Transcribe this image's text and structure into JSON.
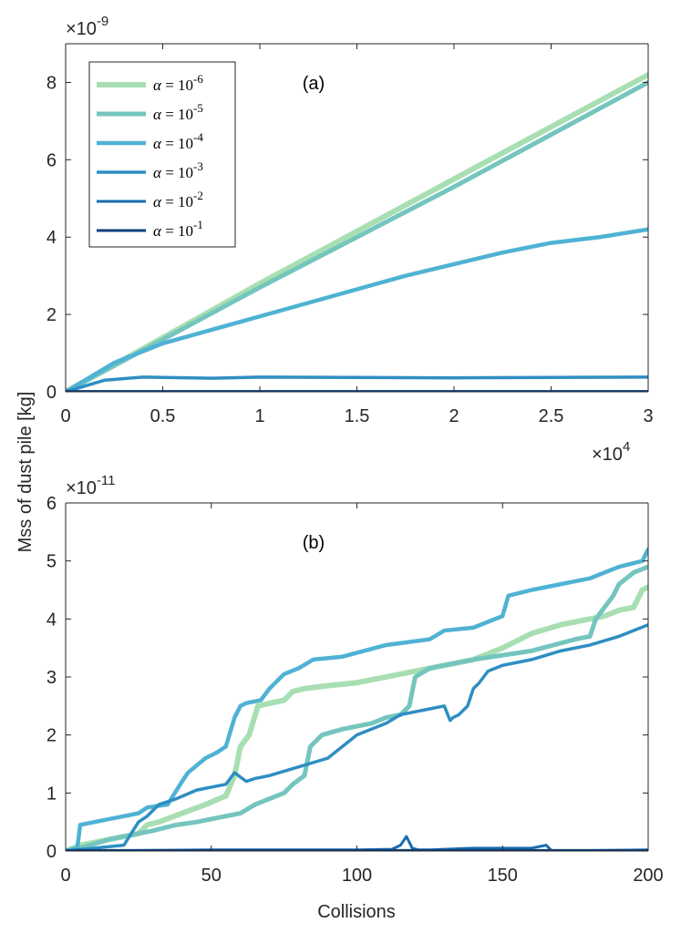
{
  "ylabel": "Mss of dust pile [kg]",
  "xlabel": "Collisions",
  "colors": [
    "#a8dfb2",
    "#74c5bd",
    "#4fb2d4",
    "#2e8ec2",
    "#1a6cb0",
    "#0d3f7e"
  ],
  "legend": {
    "placement": "top-left",
    "entries": [
      {
        "symbol": "α",
        "text": " = 10",
        "exp": "-6"
      },
      {
        "symbol": "α",
        "text": " = 10",
        "exp": "-5"
      },
      {
        "symbol": "α",
        "text": " = 10",
        "exp": "-4"
      },
      {
        "symbol": "α",
        "text": " = 10",
        "exp": "-3"
      },
      {
        "symbol": "α",
        "text": " = 10",
        "exp": "-2"
      },
      {
        "symbol": "α",
        "text": " = 10",
        "exp": "-1"
      }
    ]
  },
  "chart_data": [
    {
      "type": "line",
      "panel_label": "(a)",
      "y_multiplier": {
        "base": "×10",
        "exp": "-9"
      },
      "x_multiplier": {
        "base": "×10",
        "exp": "4"
      },
      "xlim": [
        0,
        3
      ],
      "ylim": [
        0,
        9
      ],
      "xticks": [
        0,
        0.5,
        1,
        1.5,
        2,
        2.5,
        3
      ],
      "xtick_labels": [
        "0",
        "0.5",
        "1",
        "1.5",
        "2",
        "2.5",
        "3"
      ],
      "yticks": [
        0,
        2,
        4,
        6,
        8
      ],
      "ytick_labels": [
        "0",
        "2",
        "4",
        "6",
        "8"
      ],
      "series": [
        {
          "name": "α = 10^-6",
          "x": [
            0,
            0.5,
            1,
            1.5,
            2,
            2.5,
            3
          ],
          "y": [
            0,
            1.4,
            2.8,
            4.15,
            5.5,
            6.85,
            8.2
          ]
        },
        {
          "name": "α = 10^-5",
          "x": [
            0,
            0.5,
            1,
            1.5,
            2,
            2.5,
            3
          ],
          "y": [
            0,
            1.35,
            2.7,
            4.0,
            5.3,
            6.65,
            8.0
          ]
        },
        {
          "name": "α = 10^-4",
          "x": [
            0,
            0.25,
            0.5,
            0.75,
            1,
            1.25,
            1.5,
            1.75,
            2,
            2.25,
            2.5,
            2.75,
            3
          ],
          "y": [
            0,
            0.75,
            1.25,
            1.6,
            1.95,
            2.3,
            2.65,
            3.0,
            3.3,
            3.6,
            3.85,
            4.0,
            4.2
          ]
        },
        {
          "name": "α = 10^-3",
          "x": [
            0,
            0.2,
            0.4,
            0.75,
            1,
            1.5,
            2,
            2.5,
            3
          ],
          "y": [
            0,
            0.3,
            0.38,
            0.35,
            0.38,
            0.37,
            0.36,
            0.37,
            0.38
          ]
        },
        {
          "name": "α = 10^-2",
          "x": [
            0,
            3
          ],
          "y": [
            0.01,
            0.01
          ]
        },
        {
          "name": "α = 10^-1",
          "x": [
            0,
            3
          ],
          "y": [
            0.005,
            0.005
          ]
        }
      ]
    },
    {
      "type": "line",
      "panel_label": "(b)",
      "y_multiplier": {
        "base": "×10",
        "exp": "-11"
      },
      "xlim": [
        0,
        200
      ],
      "ylim": [
        0,
        6
      ],
      "xticks": [
        0,
        50,
        100,
        150,
        200
      ],
      "xtick_labels": [
        "0",
        "50",
        "100",
        "150",
        "200"
      ],
      "yticks": [
        0,
        1,
        2,
        3,
        4,
        5,
        6
      ],
      "ytick_labels": [
        "0",
        "1",
        "2",
        "3",
        "4",
        "5",
        "6"
      ],
      "series": [
        {
          "name": "α = 10^-6",
          "x": [
            0,
            5,
            15,
            25,
            28,
            32,
            40,
            48,
            55,
            58,
            60,
            63,
            66,
            75,
            78,
            82,
            90,
            100,
            115,
            125,
            140,
            150,
            160,
            170,
            185,
            190,
            195,
            198,
            200
          ],
          "y": [
            0,
            0.1,
            0.2,
            0.3,
            0.45,
            0.5,
            0.65,
            0.8,
            0.95,
            1.3,
            1.8,
            2.0,
            2.5,
            2.6,
            2.75,
            2.8,
            2.85,
            2.9,
            3.05,
            3.15,
            3.3,
            3.5,
            3.75,
            3.9,
            4.05,
            4.15,
            4.2,
            4.5,
            4.55
          ]
        },
        {
          "name": "α = 10^-5",
          "x": [
            0,
            5,
            15,
            25,
            30,
            38,
            45,
            50,
            60,
            65,
            70,
            75,
            78,
            82,
            84,
            88,
            95,
            105,
            110,
            115,
            118,
            120,
            125,
            140,
            160,
            175,
            180,
            182,
            185,
            188,
            190,
            195,
            200
          ],
          "y": [
            0,
            0.05,
            0.2,
            0.3,
            0.35,
            0.45,
            0.5,
            0.55,
            0.65,
            0.8,
            0.9,
            1.0,
            1.15,
            1.3,
            1.8,
            2.0,
            2.1,
            2.2,
            2.3,
            2.35,
            2.5,
            3.0,
            3.15,
            3.3,
            3.45,
            3.65,
            3.7,
            4.0,
            4.2,
            4.4,
            4.6,
            4.8,
            4.9
          ]
        },
        {
          "name": "α = 10^-4",
          "x": [
            0,
            4,
            5,
            15,
            20,
            25,
            28,
            35,
            40,
            42,
            48,
            52,
            55,
            58,
            60,
            62,
            67,
            70,
            75,
            80,
            85,
            95,
            110,
            125,
            130,
            140,
            145,
            150,
            152,
            160,
            170,
            175,
            180,
            190,
            198,
            200
          ],
          "y": [
            0,
            0.05,
            0.45,
            0.55,
            0.6,
            0.65,
            0.75,
            0.8,
            1.2,
            1.35,
            1.6,
            1.7,
            1.8,
            2.3,
            2.5,
            2.55,
            2.6,
            2.8,
            3.05,
            3.15,
            3.3,
            3.35,
            3.55,
            3.65,
            3.8,
            3.85,
            3.95,
            4.05,
            4.4,
            4.5,
            4.6,
            4.65,
            4.7,
            4.9,
            5.0,
            5.2
          ]
        },
        {
          "name": "α = 10^-3",
          "x": [
            0,
            10,
            20,
            25,
            28,
            32,
            38,
            45,
            55,
            58,
            62,
            65,
            70,
            80,
            90,
            95,
            100,
            110,
            115,
            120,
            125,
            130,
            132,
            133,
            135,
            138,
            140,
            142,
            145,
            150,
            160,
            170,
            180,
            190,
            200
          ],
          "y": [
            0,
            0.05,
            0.1,
            0.5,
            0.6,
            0.8,
            0.9,
            1.05,
            1.15,
            1.35,
            1.2,
            1.25,
            1.3,
            1.45,
            1.6,
            1.8,
            2.0,
            2.2,
            2.35,
            2.4,
            2.45,
            2.5,
            2.25,
            2.3,
            2.35,
            2.5,
            2.8,
            2.9,
            3.1,
            3.2,
            3.3,
            3.45,
            3.55,
            3.7,
            3.9
          ]
        },
        {
          "name": "α = 10^-2",
          "x": [
            0,
            50,
            100,
            112,
            115,
            117,
            119,
            121,
            125,
            140,
            160,
            165,
            167,
            200
          ],
          "y": [
            0,
            0.02,
            0.02,
            0.03,
            0.1,
            0.25,
            0.05,
            0.02,
            0.02,
            0.05,
            0.05,
            0.1,
            0.0,
            0.02
          ]
        },
        {
          "name": "α = 10^-1",
          "x": [
            0,
            200
          ],
          "y": [
            0.01,
            0.01
          ]
        }
      ]
    }
  ]
}
